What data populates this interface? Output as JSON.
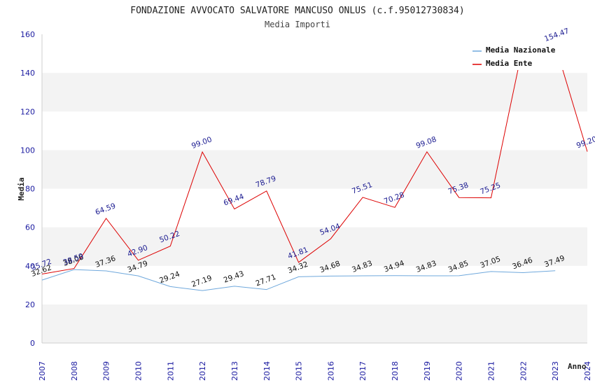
{
  "chart_data": {
    "type": "line",
    "title": "FONDAZIONE AVVOCATO SALVATORE MANCUSO ONLUS (c.f.95012730834)",
    "subtitle": "Media Importi",
    "xlabel": "Anno",
    "ylabel": "Media",
    "ylim": [
      0,
      160
    ],
    "yticks": [
      0,
      20,
      40,
      60,
      80,
      100,
      120,
      140,
      160
    ],
    "categories": [
      "2007",
      "2008",
      "2009",
      "2010",
      "2011",
      "2012",
      "2013",
      "2014",
      "2015",
      "2016",
      "2017",
      "2018",
      "2019",
      "2020",
      "2021",
      "2022",
      "2023",
      "2024"
    ],
    "grid": "horizontal bands",
    "legend_position": "top-right",
    "series": [
      {
        "name": "Media Nazionale",
        "color": "#6fa8dc",
        "values": [
          32.62,
          38.06,
          37.36,
          34.79,
          29.24,
          27.19,
          29.43,
          27.71,
          34.32,
          34.68,
          34.83,
          34.94,
          34.83,
          34.85,
          37.05,
          36.46,
          37.49,
          null
        ],
        "labels": [
          "32.62",
          "38.06",
          "37.36",
          "34.79",
          "29.24",
          "27.19",
          "29.43",
          "27.71",
          "34.32",
          "34.68",
          "34.83",
          "34.94",
          "34.83",
          "34.85",
          "37.05",
          "36.46",
          "37.49",
          null
        ]
      },
      {
        "name": "Media Ente",
        "color": "#dd0000",
        "values": [
          35.72,
          38.59,
          64.59,
          42.9,
          50.22,
          99.0,
          69.44,
          78.79,
          41.81,
          54.04,
          75.51,
          70.28,
          99.08,
          75.38,
          75.25,
          154.47,
          154.47,
          99.2
        ],
        "labels": [
          "35.72",
          "38.59",
          "64.59",
          "42.90",
          "50.22",
          "99.00",
          "69.44",
          "78.79",
          "41.81",
          "54.04",
          "75.51",
          "70.28",
          "99.08",
          "75.38",
          "75.25",
          null,
          "154.47",
          "99.20"
        ]
      }
    ]
  }
}
